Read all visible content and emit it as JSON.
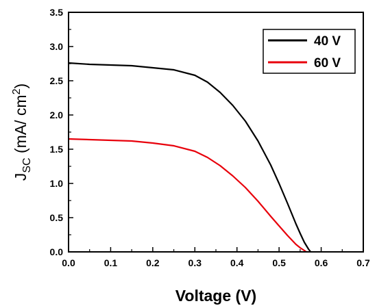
{
  "chart_data": {
    "type": "line",
    "title": "",
    "xlabel": "Voltage (V)",
    "ylabel": {
      "main": "J",
      "subscript": "SC",
      "unit_open": " (mA/ cm",
      "superscript": "2",
      "unit_close": ")"
    },
    "xlim": [
      0.0,
      0.7
    ],
    "ylim": [
      0.0,
      3.5
    ],
    "x_ticks": [
      "0.0",
      "0.1",
      "0.2",
      "0.3",
      "0.4",
      "0.5",
      "0.6",
      "0.7"
    ],
    "y_ticks": [
      "0.0",
      "0.5",
      "1.0",
      "1.5",
      "2.0",
      "2.5",
      "3.0",
      "3.5"
    ],
    "grid": false,
    "legend_position": "top-right",
    "series": [
      {
        "name": "40 V",
        "color": "#000000",
        "x": [
          0.0,
          0.05,
          0.1,
          0.15,
          0.2,
          0.25,
          0.3,
          0.33,
          0.36,
          0.39,
          0.42,
          0.45,
          0.48,
          0.5,
          0.52,
          0.54,
          0.55,
          0.56,
          0.57,
          0.575
        ],
        "y": [
          2.76,
          2.74,
          2.73,
          2.72,
          2.69,
          2.66,
          2.58,
          2.48,
          2.33,
          2.14,
          1.91,
          1.62,
          1.27,
          1.0,
          0.71,
          0.41,
          0.27,
          0.14,
          0.04,
          0.0
        ]
      },
      {
        "name": "60 V",
        "color": "#e8000b",
        "x": [
          0.0,
          0.05,
          0.1,
          0.15,
          0.2,
          0.25,
          0.3,
          0.33,
          0.36,
          0.39,
          0.42,
          0.45,
          0.48,
          0.5,
          0.52,
          0.54,
          0.55,
          0.56,
          0.565
        ],
        "y": [
          1.65,
          1.64,
          1.63,
          1.62,
          1.59,
          1.55,
          1.47,
          1.38,
          1.26,
          1.11,
          0.94,
          0.74,
          0.52,
          0.38,
          0.24,
          0.11,
          0.06,
          0.02,
          0.0
        ]
      }
    ]
  }
}
